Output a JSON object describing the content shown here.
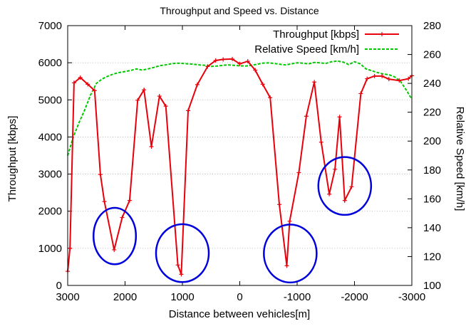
{
  "chart_data": {
    "type": "line",
    "title": "Throughput and Speed vs. Distance",
    "xlabel": "Distance between vehicles[m]",
    "ylabel": "Throughput [kbps]",
    "y2label": "Relative Speed [km/h]",
    "xlim": [
      3000,
      -3000
    ],
    "ylim": [
      0,
      7000
    ],
    "y2lim": [
      100,
      280
    ],
    "x_ticks": [
      3000,
      2000,
      1000,
      0,
      -1000,
      -2000,
      -3000
    ],
    "y_ticks": [
      0,
      1000,
      2000,
      3000,
      4000,
      5000,
      6000,
      7000
    ],
    "y2_ticks": [
      100,
      120,
      140,
      160,
      180,
      200,
      220,
      240,
      260,
      280
    ],
    "grid": "horizontal dotted",
    "legend_position": "top-right",
    "series": [
      {
        "name": "Throughput [kbps]",
        "axis": "left",
        "color": "#e8000b",
        "style": "solid-with-plus-markers",
        "x": [
          3000,
          2960,
          2890,
          2780,
          2650,
          2530,
          2430,
          2360,
          2190,
          2050,
          1920,
          1780,
          1670,
          1540,
          1400,
          1290,
          1080,
          1020,
          900,
          740,
          560,
          420,
          290,
          130,
          0,
          -140,
          -270,
          -400,
          -530,
          -690,
          -820,
          -870,
          -1030,
          -1160,
          -1300,
          -1420,
          -1560,
          -1660,
          -1740,
          -1830,
          -1950,
          -2110,
          -2220,
          -2350,
          -2480,
          -2600,
          -2780,
          -2940,
          -3000
        ],
        "y": [
          380,
          1000,
          5460,
          5600,
          5420,
          5250,
          2990,
          2260,
          960,
          1830,
          2290,
          4990,
          5270,
          3740,
          5100,
          4830,
          550,
          300,
          4710,
          5410,
          5900,
          6060,
          6090,
          6100,
          5970,
          6040,
          5800,
          5420,
          5060,
          2180,
          530,
          1730,
          3040,
          4560,
          5480,
          3860,
          2460,
          3130,
          4540,
          2290,
          2660,
          5170,
          5570,
          5640,
          5640,
          5560,
          5520,
          5570,
          5650
        ]
      },
      {
        "name": "Relative Speed [km/h]",
        "axis": "right",
        "color": "#00c800",
        "style": "dashed",
        "x": [
          3000,
          2900,
          2800,
          2700,
          2600,
          2500,
          2400,
          2300,
          2200,
          2100,
          2000,
          1900,
          1800,
          1700,
          1600,
          1500,
          1400,
          1300,
          1200,
          1100,
          1000,
          900,
          800,
          700,
          600,
          500,
          400,
          300,
          200,
          100,
          0,
          -100,
          -200,
          -300,
          -400,
          -500,
          -600,
          -700,
          -800,
          -900,
          -1000,
          -1100,
          -1200,
          -1300,
          -1400,
          -1500,
          -1600,
          -1700,
          -1800,
          -1900,
          -2000,
          -2100,
          -2200,
          -2300,
          -2400,
          -2500,
          -2600,
          -2700,
          -2800,
          -2900,
          -3000
        ],
        "y": [
          190,
          203,
          213,
          222,
          232,
          240,
          243,
          245,
          246.5,
          247.5,
          248.2,
          249,
          250,
          249.2,
          250,
          251,
          252.2,
          252.8,
          253.5,
          254,
          253.8,
          253.5,
          253.2,
          252.8,
          252.5,
          251.8,
          252,
          252.5,
          252.8,
          252.5,
          252.2,
          252,
          252.5,
          253.2,
          254,
          254.2,
          253.8,
          253.2,
          252.8,
          253.5,
          254.2,
          254,
          253.5,
          254.5,
          254.2,
          253.8,
          255,
          255.5,
          254.8,
          253,
          255,
          253.5,
          250,
          248.8,
          247.5,
          246.5,
          246,
          244.5,
          241.5,
          235.5,
          229
        ]
      }
    ],
    "annotations": [
      {
        "type": "ellipse",
        "color": "#0000dd",
        "cx": 2180,
        "cy": 1330,
        "rx": 370,
        "ry": 760
      },
      {
        "type": "ellipse",
        "color": "#0000dd",
        "cx": 1000,
        "cy": 870,
        "rx": 460,
        "ry": 780
      },
      {
        "type": "ellipse",
        "color": "#0000dd",
        "cx": -880,
        "cy": 860,
        "rx": 460,
        "ry": 780
      },
      {
        "type": "ellipse",
        "color": "#0000dd",
        "cx": -1830,
        "cy": 2680,
        "rx": 460,
        "ry": 780
      }
    ]
  }
}
